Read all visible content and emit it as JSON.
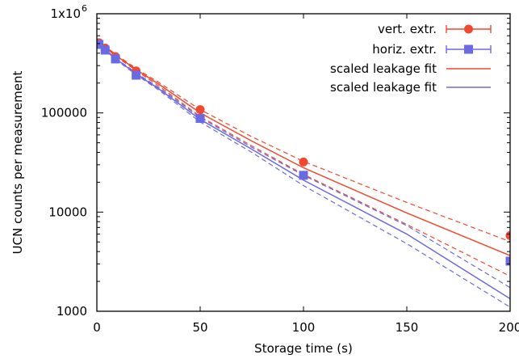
{
  "chart_data": {
    "type": "scatter",
    "xlabel": "Storage time (s)",
    "ylabel": "UCN counts per measurement",
    "xlim": [
      0,
      200
    ],
    "ylim": [
      1000,
      1000000
    ],
    "y_scale": "log",
    "grid": false,
    "legend_position": "top-right",
    "x_ticks": [
      0,
      50,
      100,
      150,
      200
    ],
    "x_tick_labels": [
      "0",
      "50",
      "100",
      "150",
      "200"
    ],
    "y_ticks": [
      1000,
      10000,
      100000,
      1000000
    ],
    "y_tick_labels": [
      "1000",
      "10000",
      "100000",
      "1x10"
    ],
    "y_top_label_exponent": "6",
    "series": [
      {
        "name": "vert. extr.",
        "kind": "points",
        "marker": "circle",
        "color": "#f0492f",
        "x": [
          1,
          4,
          9,
          19,
          50,
          100,
          200
        ],
        "y": [
          510000,
          450000,
          370000,
          265000,
          108000,
          32000,
          5800
        ]
      },
      {
        "name": "horiz. extr.",
        "kind": "points",
        "marker": "square",
        "color": "#6a6ae3",
        "x": [
          1,
          4,
          9,
          19,
          50,
          100,
          200
        ],
        "y": [
          490000,
          430000,
          350000,
          240000,
          88000,
          23500,
          3200
        ]
      },
      {
        "name": "scaled leakage fit",
        "kind": "line",
        "color": "#f0492f",
        "x": [
          0,
          10,
          20,
          30,
          50,
          75,
          100,
          150,
          205
        ],
        "y": [
          540000,
          370000,
          265000,
          195000,
          100000,
          52000,
          28000,
          9800,
          3300
        ],
        "band_upper": [
          545000,
          378000,
          272000,
          203000,
          108000,
          57500,
          32500,
          12500,
          4600
        ],
        "band_lower": [
          535000,
          362000,
          258000,
          187000,
          92000,
          46500,
          24000,
          7500,
          2000
        ]
      },
      {
        "name": "scaled leakage fit",
        "kind": "line",
        "color": "#6a6ae3",
        "x": [
          0,
          10,
          20,
          30,
          50,
          75,
          100,
          150,
          205
        ],
        "y": [
          510000,
          340000,
          240000,
          175000,
          86000,
          43000,
          21000,
          6000,
          1150
        ],
        "band_upper": [
          515000,
          345000,
          245000,
          180000,
          90000,
          45000,
          23500,
          7300,
          1500
        ],
        "band_lower": [
          505000,
          335000,
          235000,
          170000,
          81000,
          40000,
          18500,
          4800,
          950
        ]
      }
    ]
  }
}
